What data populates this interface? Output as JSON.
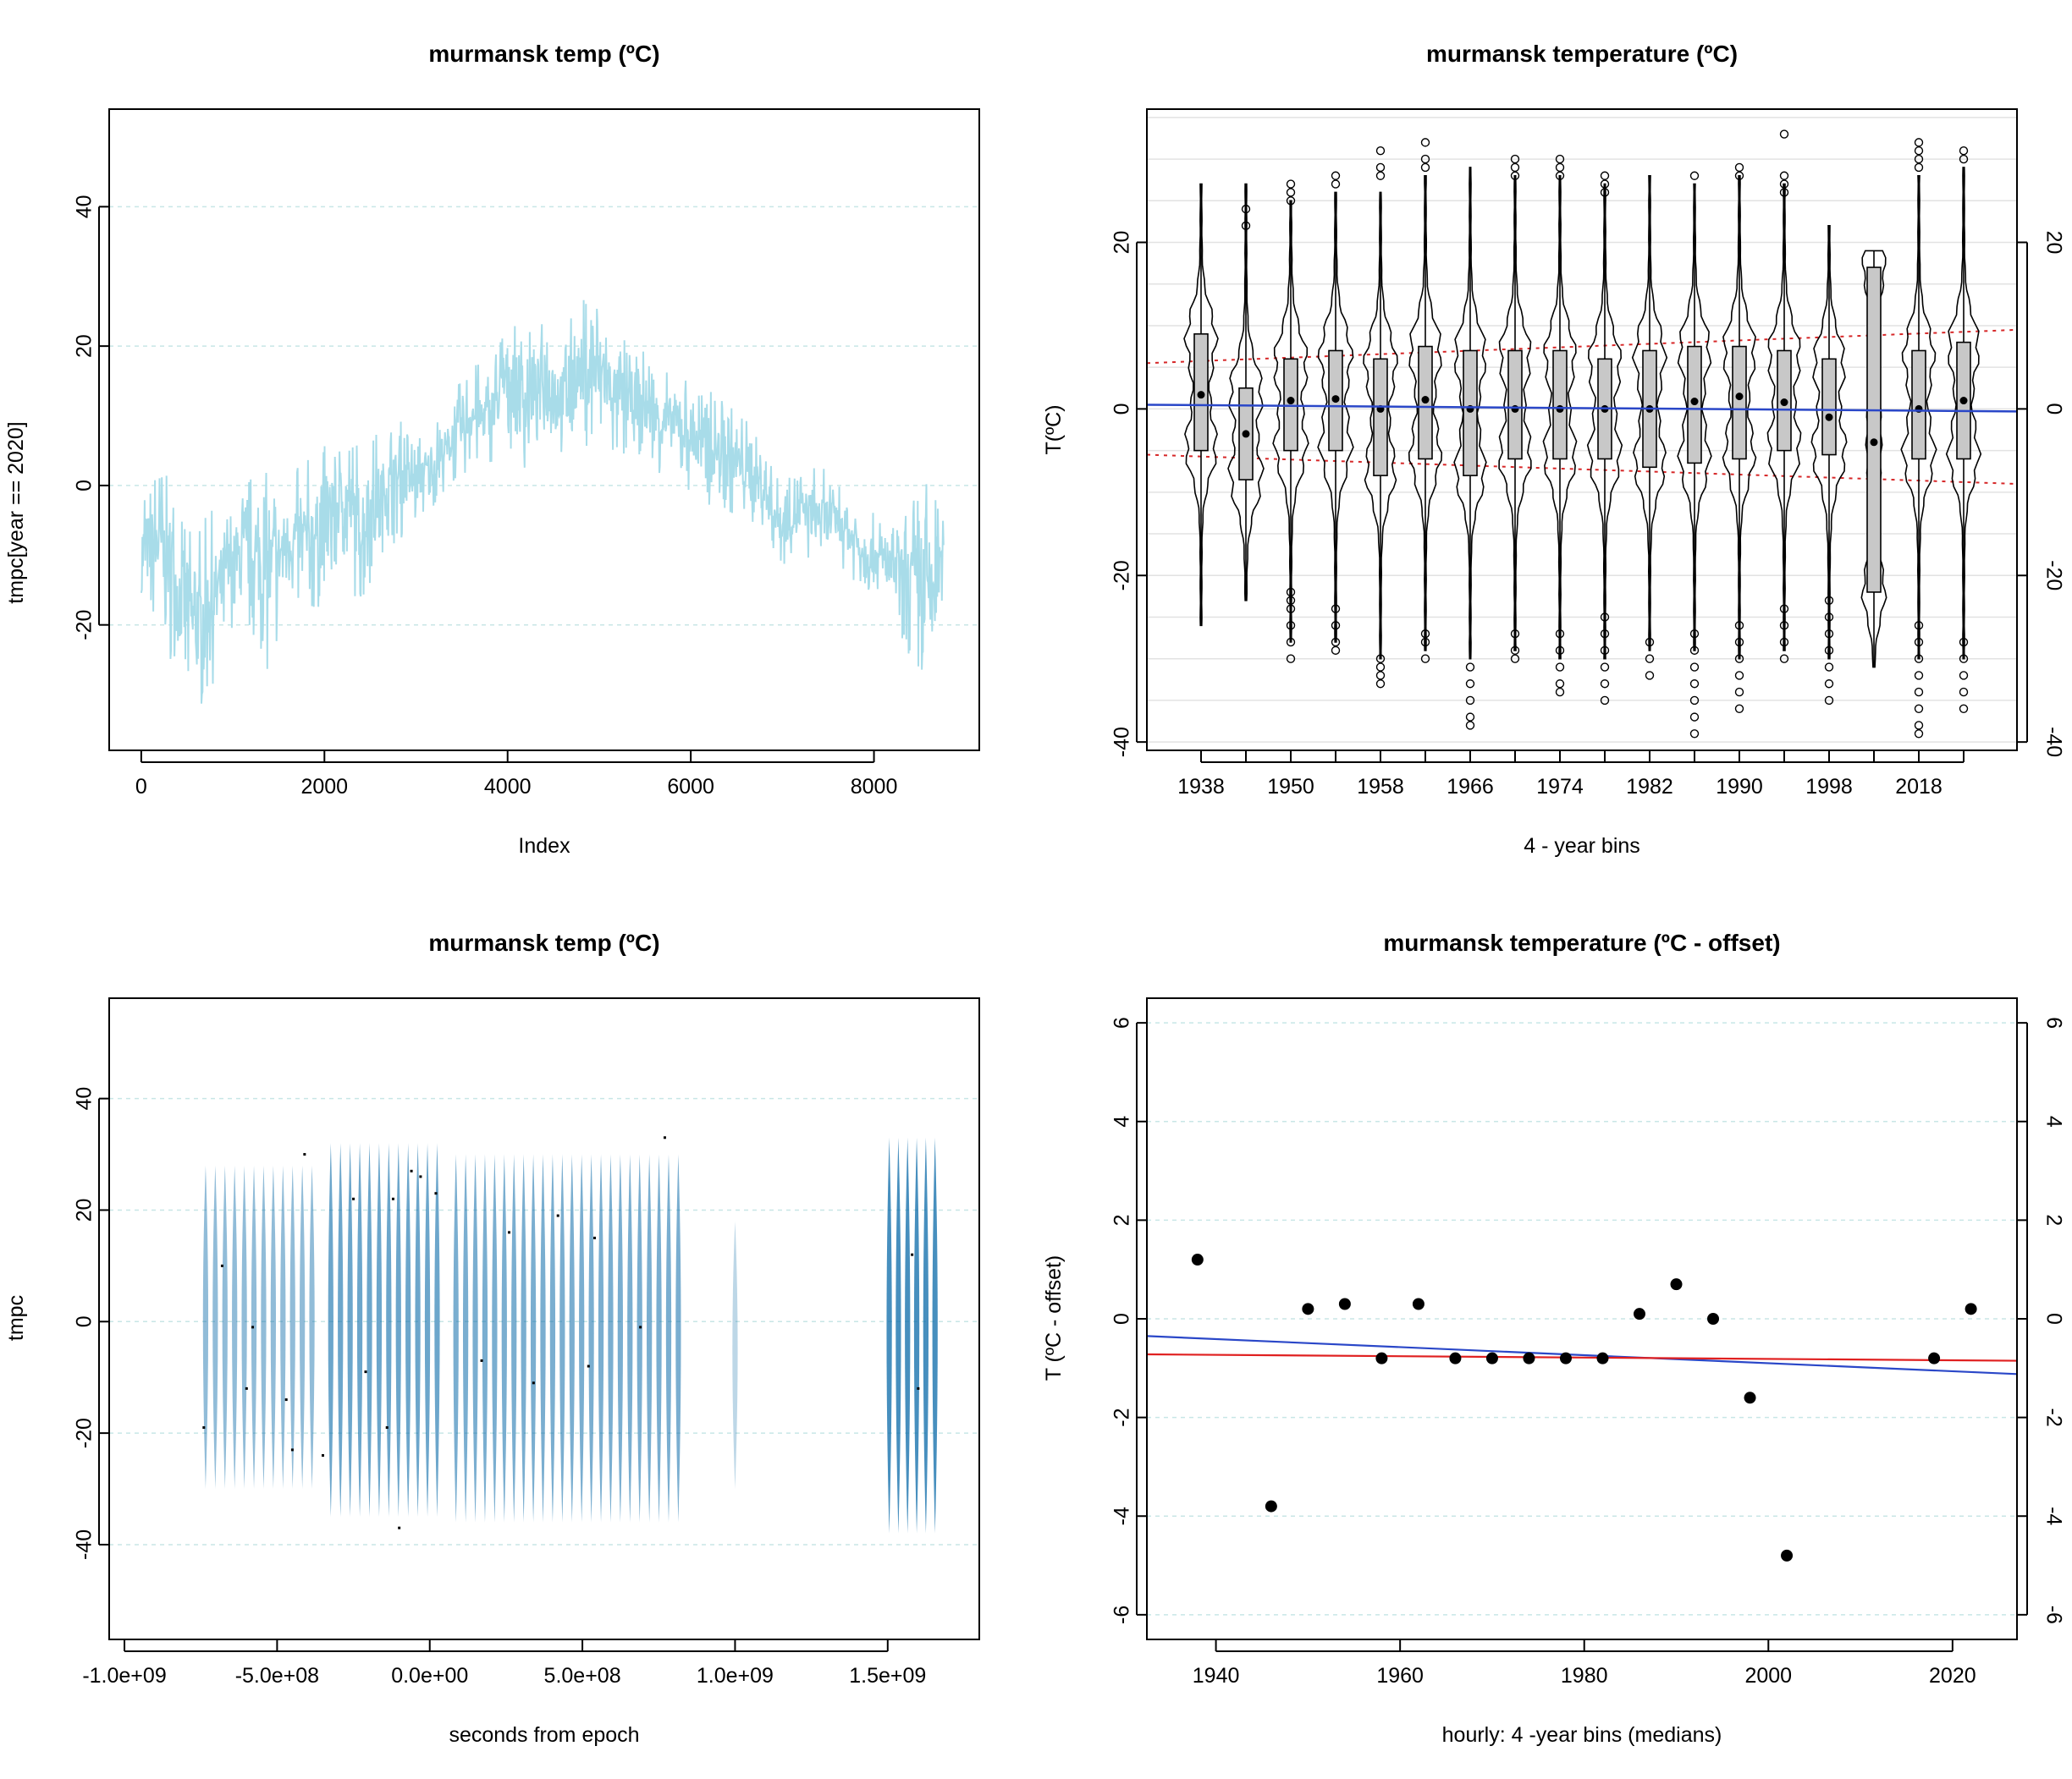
{
  "chart_data": [
    {
      "id": "p1",
      "type": "line",
      "title": "murmansk temp (ºC)",
      "xlabel": "Index",
      "ylabel": "tmpc[year == 2020]",
      "xlim": [
        -350,
        9150
      ],
      "ylim": [
        -38,
        54
      ],
      "xticks": [
        0,
        2000,
        4000,
        6000,
        8000
      ],
      "xtick_labels": [
        "0",
        "2000",
        "4000",
        "6000",
        "8000"
      ],
      "yticks": [
        -20,
        0,
        20,
        40
      ],
      "ytick_labels": [
        "-20",
        "0",
        "20",
        "40"
      ],
      "grid_y": [
        -20,
        0,
        20,
        40
      ],
      "line_color": "#a8dce9",
      "grid_color": "#c8e6e6",
      "series_envelope": {
        "x": [
          0,
          200,
          400,
          600,
          800,
          1000,
          1200,
          1400,
          1600,
          1800,
          2000,
          2200,
          2400,
          2600,
          2800,
          3000,
          3200,
          3400,
          3600,
          3800,
          4000,
          4200,
          4400,
          4600,
          4800,
          5000,
          5200,
          5400,
          5600,
          5800,
          6000,
          6200,
          6400,
          6600,
          6800,
          7000,
          7200,
          7400,
          7600,
          7800,
          8000,
          8200,
          8400,
          8600,
          8760
        ],
        "upper": [
          2,
          3,
          -1,
          -6,
          -3,
          -2,
          2,
          2,
          1,
          4,
          6,
          9,
          7,
          8,
          10,
          7,
          9,
          13,
          18,
          17,
          26,
          22,
          24,
          22,
          27,
          28,
          22,
          21,
          18,
          17,
          16,
          14,
          12,
          10,
          5,
          0,
          3,
          3,
          1,
          -2,
          -4,
          -6,
          -2,
          2,
          -5
        ],
        "lower": [
          -22,
          -18,
          -30,
          -34,
          -28,
          -20,
          -22,
          -28,
          -16,
          -20,
          -18,
          -12,
          -18,
          -10,
          -8,
          -6,
          -3,
          0,
          2,
          3,
          5,
          2,
          7,
          4,
          6,
          5,
          3,
          4,
          2,
          1,
          -1,
          -3,
          -4,
          -5,
          -7,
          -12,
          -10,
          -12,
          -11,
          -14,
          -16,
          -18,
          -26,
          -32,
          -20
        ]
      }
    },
    {
      "id": "p2",
      "type": "violin",
      "title": "murmansk temperature (ºC)",
      "xlabel": "4 - year bins",
      "ylabel": "T(ºC)",
      "ylim": [
        -41,
        36
      ],
      "yticks": [
        -40,
        -20,
        0,
        20
      ],
      "ytick_labels": [
        "-40",
        "-20",
        "0",
        "20"
      ],
      "xtick_labels": [
        "1938",
        "1950",
        "1958",
        "1966",
        "1974",
        "1982",
        "1990",
        "1998",
        "2018"
      ],
      "categories": [
        "1938",
        "1946",
        "1950",
        "1954",
        "1958",
        "1962",
        "1966",
        "1970",
        "1974",
        "1978",
        "1982",
        "1986",
        "1990",
        "1994",
        "1998",
        "2002",
        "2018",
        "2022"
      ],
      "labeled_categories": [
        "1938",
        "1950",
        "1958",
        "1966",
        "1974",
        "1982",
        "1990",
        "1998",
        "2018"
      ],
      "grid_y": [
        -40,
        -35,
        -30,
        -25,
        -20,
        -15,
        -10,
        -5,
        0,
        5,
        10,
        15,
        20,
        25,
        30,
        35
      ],
      "median": [
        1.7,
        -3,
        1,
        1.2,
        0,
        1.1,
        0,
        0,
        0,
        0,
        0,
        0.9,
        1.5,
        0.8,
        -1,
        -4,
        0,
        1
      ],
      "q1": [
        -5,
        -8.5,
        -5,
        -5,
        -8,
        -6,
        -8,
        -6,
        -6,
        -6,
        -7,
        -6.5,
        -6,
        -5,
        -5.5,
        -22,
        -6,
        -6
      ],
      "q3": [
        9,
        2.5,
        6,
        7,
        6,
        7.5,
        7,
        7,
        7,
        6,
        7,
        7.5,
        7.5,
        7,
        6,
        17,
        7,
        8
      ],
      "whisker_low": [
        -26,
        -23,
        -28,
        -28,
        -30,
        -29,
        -30,
        -29,
        -30,
        -30,
        -29,
        -29,
        -30,
        -29,
        -30,
        -31,
        -30,
        -30
      ],
      "whisker_high": [
        27,
        27,
        25,
        26,
        26,
        28,
        29,
        28,
        28,
        27,
        28,
        27,
        28,
        27,
        22,
        19,
        28,
        29
      ],
      "outliers_low": [
        [],
        [],
        [
          -22,
          -23,
          -24,
          -26,
          -28,
          -30
        ],
        [
          -24,
          -26,
          -28,
          -29
        ],
        [
          -30,
          -31,
          -32,
          -33
        ],
        [
          -27,
          -28,
          -30
        ],
        [
          -31,
          -33,
          -35,
          -37,
          -38
        ],
        [
          -27,
          -29,
          -30
        ],
        [
          -27,
          -29,
          -31,
          -33,
          -34
        ],
        [
          -25,
          -27,
          -29,
          -31,
          -33,
          -35
        ],
        [
          -28,
          -30,
          -32
        ],
        [
          -27,
          -29,
          -31,
          -33,
          -35,
          -37,
          -39
        ],
        [
          -26,
          -28,
          -30,
          -32,
          -34,
          -36
        ],
        [
          -24,
          -26,
          -28,
          -30
        ],
        [
          -23,
          -25,
          -27,
          -29,
          -31,
          -33,
          -35
        ],
        [],
        [
          -26,
          -28,
          -30,
          -32,
          -34,
          -36,
          -38,
          -39
        ],
        [
          -28,
          -30,
          -32,
          -34,
          -36
        ]
      ],
      "outliers_high": [
        [],
        [
          22,
          24
        ],
        [
          25,
          26,
          27
        ],
        [
          27,
          28
        ],
        [
          28,
          29,
          31
        ],
        [
          29,
          30,
          32
        ],
        [],
        [
          28,
          29,
          30
        ],
        [
          28,
          29,
          30
        ],
        [
          26,
          27,
          28
        ],
        [],
        [
          28
        ],
        [
          28,
          29
        ],
        [
          26,
          27,
          28,
          33
        ],
        [],
        [],
        [
          29,
          30,
          31,
          32
        ],
        [
          30,
          31
        ]
      ],
      "trend_line": {
        "color": "#2a47c8",
        "x_start": 1932,
        "x_end": 2026,
        "y_start": 0.5,
        "y_end": -0.3
      },
      "band_upper": {
        "color": "#d62728",
        "y_start": 5.5,
        "y_end": 9.5
      },
      "band_lower": {
        "color": "#d62728",
        "y_start": -5.5,
        "y_end": -9
      }
    },
    {
      "id": "p3",
      "type": "density-strip",
      "title": "murmansk temp (ºC)",
      "xlabel": "seconds from epoch",
      "ylabel": "tmpc",
      "xlim": [
        -1050000000.0,
        1800000000.0
      ],
      "ylim": [
        -57,
        58
      ],
      "xticks": [
        -1000000000.0,
        -500000000.0,
        0,
        500000000.0,
        1000000000.0,
        1500000000.0
      ],
      "xtick_labels": [
        "-1.0e+09",
        "-5.0e+08",
        "0.0e+00",
        "5.0e+08",
        "1.0e+09",
        "1.5e+09"
      ],
      "yticks": [
        -40,
        -20,
        0,
        20,
        40
      ],
      "ytick_labels": [
        "-40",
        "-20",
        "0",
        "20",
        "40"
      ],
      "grid_y": [
        -40,
        -20,
        0,
        20,
        40
      ],
      "strip_color": "#0a6aa8",
      "segments": [
        {
          "x_start": -750000000.0,
          "x_end": -370000000.0,
          "low": -30,
          "high": 28,
          "intensity": 0.45
        },
        {
          "x_start": -340000000.0,
          "x_end": 40000000.0,
          "low": -35,
          "high": 32,
          "intensity": 0.7
        },
        {
          "x_start": 70000000.0,
          "x_end": 830000000.0,
          "low": -36,
          "high": 30,
          "intensity": 0.6
        },
        {
          "x_start": 990000000.0,
          "x_end": 1010000000.0,
          "low": -30,
          "high": 18,
          "intensity": 0.15
        },
        {
          "x_start": 1490000000.0,
          "x_end": 1670000000.0,
          "low": -38,
          "high": 33,
          "intensity": 0.95
        }
      ],
      "outlier_points": [
        [
          -740000000.0,
          -19
        ],
        [
          -680000000.0,
          10
        ],
        [
          -600000000.0,
          -12
        ],
        [
          -580000000.0,
          -1
        ],
        [
          -470000000.0,
          -14
        ],
        [
          -450000000.0,
          -23
        ],
        [
          -410000000.0,
          30
        ],
        [
          -350000000.0,
          -24
        ],
        [
          -250000000.0,
          22
        ],
        [
          -210000000.0,
          -9
        ],
        [
          -140000000.0,
          -19
        ],
        [
          -120000000.0,
          22
        ],
        [
          -100000000.0,
          -37
        ],
        [
          -60000000.0,
          27
        ],
        [
          -30000000.0,
          26
        ],
        [
          20000000.0,
          23
        ],
        [
          170000000.0,
          -7
        ],
        [
          260000000.0,
          16
        ],
        [
          340000000.0,
          -11
        ],
        [
          420000000.0,
          19
        ],
        [
          540000000.0,
          15
        ],
        [
          520000000.0,
          -8
        ],
        [
          690000000.0,
          -1
        ],
        [
          770000000.0,
          33
        ],
        [
          1580000000.0,
          12
        ],
        [
          1600000000.0,
          -12
        ]
      ]
    },
    {
      "id": "p4",
      "type": "scatter",
      "title": "murmansk temperature (ºC - offset)",
      "xlabel": "hourly:  4 -year bins (medians)",
      "ylabel": "T (ºC - offset)",
      "xlim": [
        1932.5,
        2027
      ],
      "ylim": [
        -6.5,
        6.5
      ],
      "xticks": [
        1940,
        1960,
        1980,
        2000,
        2020
      ],
      "xtick_labels": [
        "1940",
        "1960",
        "1980",
        "2000",
        "2020"
      ],
      "yticks": [
        -6,
        -4,
        -2,
        0,
        2,
        4,
        6
      ],
      "ytick_labels": [
        "-6",
        "-4",
        "-2",
        "0",
        "2",
        "4",
        "6"
      ],
      "grid_y": [
        -6,
        -4,
        -2,
        0,
        2,
        4,
        6
      ],
      "x": [
        1938,
        1946,
        1950,
        1954,
        1958,
        1962,
        1966,
        1970,
        1974,
        1978,
        1982,
        1986,
        1990,
        1994,
        1998,
        2002,
        2018,
        2022
      ],
      "y": [
        1.2,
        -3.8,
        0.2,
        0.3,
        -0.8,
        0.3,
        -0.8,
        -0.8,
        -0.8,
        -0.8,
        -0.8,
        0.1,
        0.7,
        0.0,
        -1.6,
        -4.8,
        -0.8,
        0.2
      ],
      "fit_blue": {
        "color": "#2a47c8",
        "x_start": 1932.5,
        "x_end": 2027,
        "y_start": -0.35,
        "y_end": -1.12
      },
      "fit_red": {
        "color": "#e02020",
        "x_start": 1932.5,
        "x_end": 2027,
        "y_start": -0.72,
        "y_end": -0.85
      }
    }
  ]
}
